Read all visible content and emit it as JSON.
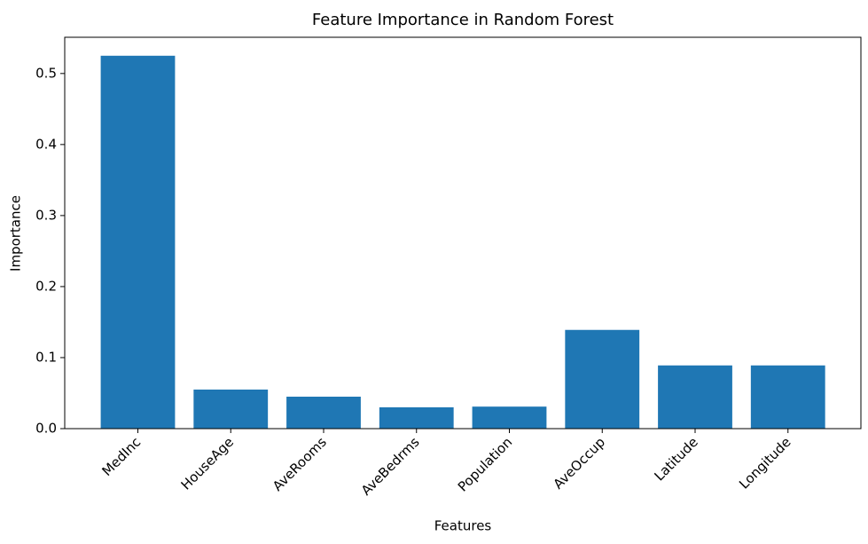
{
  "chart_data": {
    "type": "bar",
    "title": "Feature Importance in Random Forest",
    "x_label": "Features",
    "y_label": "Importance",
    "categories": [
      "MedInc",
      "HouseAge",
      "AveRooms",
      "AveBedrms",
      "Population",
      "AveOccup",
      "Latitude",
      "Longitude"
    ],
    "values": [
      0.525,
      0.055,
      0.045,
      0.03,
      0.031,
      0.139,
      0.089,
      0.089
    ],
    "color": "#1f77b4",
    "ylim": [
      0,
      0.551
    ],
    "yticks": [
      {
        "value": 0,
        "label": "0.0"
      },
      0.1,
      0.2,
      0.3,
      0.4,
      0.5
    ]
  }
}
